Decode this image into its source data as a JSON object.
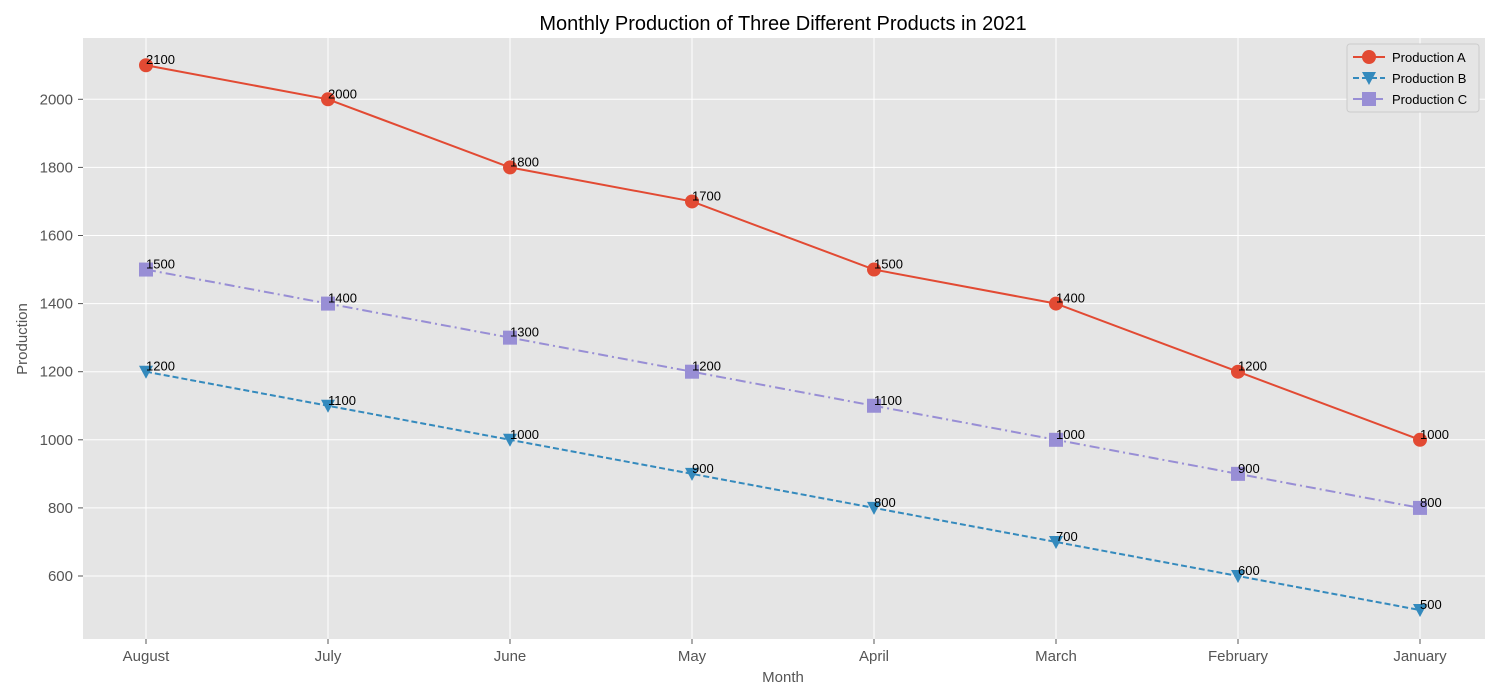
{
  "chart_data": {
    "type": "line",
    "title": "Monthly Production of Three Different Products in 2021",
    "xlabel": "Month",
    "ylabel": "Production",
    "categories": [
      "August",
      "July",
      "June",
      "May",
      "April",
      "March",
      "February",
      "January"
    ],
    "ylim": [
      415,
      2180
    ],
    "yticks": [
      600,
      800,
      1000,
      1200,
      1400,
      1600,
      1800,
      2000
    ],
    "grid": true,
    "legend_position": "top-right",
    "series": [
      {
        "name": "Production A",
        "values": [
          2100,
          2000,
          1800,
          1700,
          1500,
          1400,
          1200,
          1000
        ],
        "color": "#E24A33",
        "marker": "circle",
        "linestyle": "solid"
      },
      {
        "name": "Production B",
        "values": [
          1200,
          1100,
          1000,
          900,
          800,
          700,
          600,
          500
        ],
        "color": "#348ABD",
        "marker": "triangle-down",
        "linestyle": "dashed"
      },
      {
        "name": "Production C",
        "values": [
          1500,
          1400,
          1300,
          1200,
          1100,
          1000,
          900,
          800
        ],
        "color": "#988ED5",
        "marker": "square",
        "linestyle": "dashdot"
      }
    ],
    "colors": {
      "plot_background": "#E5E5E5",
      "grid": "#FFFFFF"
    }
  }
}
